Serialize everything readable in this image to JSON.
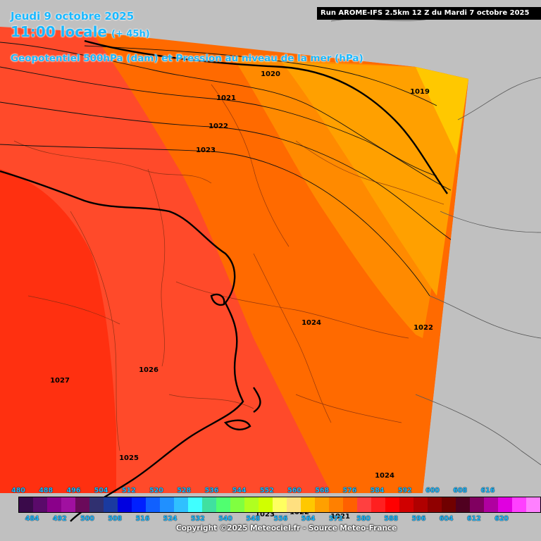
{
  "header": {
    "date": "Jeudi 9 octobre 2025",
    "time": "11:00 locale",
    "lead": "(+ 45h)",
    "parameter": "Geopotentiel 500hPa (dam) et Pression au niveau de la mer (hPa)",
    "run": "Run AROME-IFS 2.5km 12 Z du Mardi 7 octobre 2025"
  },
  "isobar_labels": [
    "1020",
    "1019",
    "1021",
    "1022",
    "1023",
    "1024",
    "1022",
    "1026",
    "1027",
    "1025",
    "1024",
    "1023",
    "1022",
    "1021"
  ],
  "legend": {
    "top_ticks": [
      "480",
      "488",
      "496",
      "504",
      "512",
      "520",
      "528",
      "536",
      "544",
      "552",
      "560",
      "568",
      "576",
      "584",
      "592",
      "600",
      "608",
      "616"
    ],
    "bottom_ticks": [
      "484",
      "492",
      "500",
      "508",
      "516",
      "524",
      "532",
      "540",
      "548",
      "556",
      "564",
      "572",
      "580",
      "588",
      "596",
      "604",
      "612",
      "620"
    ],
    "colors": [
      "#3a0a4a",
      "#5a0a6a",
      "#8a008a",
      "#a010a0",
      "#6a0a5a",
      "#303070",
      "#1a3aa0",
      "#0000e0",
      "#0020ff",
      "#1060ff",
      "#2090ff",
      "#30c0ff",
      "#40ffff",
      "#40e0a0",
      "#50ff70",
      "#80ff40",
      "#b0ff20",
      "#d0ff00",
      "#ffff60",
      "#ffe080",
      "#ffc800",
      "#ffa000",
      "#ff8000",
      "#ff6000",
      "#ff4040",
      "#ff2020",
      "#ff0000",
      "#d00000",
      "#b00000",
      "#900000",
      "#700000",
      "#500020",
      "#800060",
      "#b000a0",
      "#e000e0",
      "#ff40ff",
      "#ff80ff"
    ]
  },
  "copyright": "Copyright ©2025 Meteociel.fr - Source Meteo-France"
}
